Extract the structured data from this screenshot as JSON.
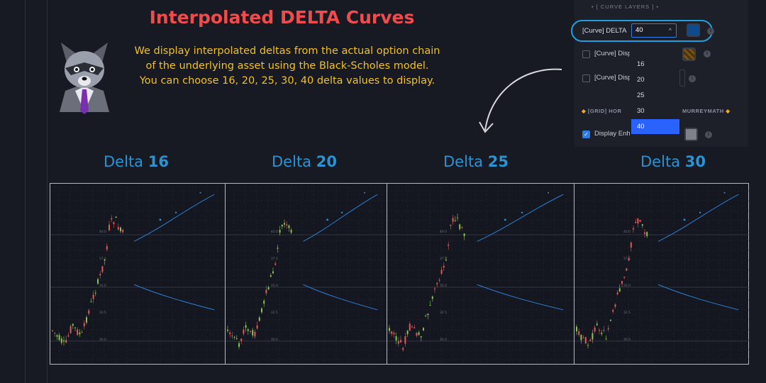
{
  "header": {
    "title": "Interpolated DELTA Curves",
    "description_lines": [
      "We  display interpolated deltas from the actual option chain",
      "of the underlying asset using the Black-Scholes model.",
      "You can choose 16, 20, 25, 30, 40 delta values to display."
    ]
  },
  "settings_panel": {
    "section_header": "• [ CURVE LAYERS ] •",
    "curve_row": {
      "label": "[Curve] DELTA",
      "select_value": "40",
      "caret": "^",
      "swatch_color": "#0d4a8f"
    },
    "rows": [
      {
        "label": "[Curve] Disp",
        "checked": false
      },
      {
        "label": "[Curve] Disp",
        "checked": false
      }
    ],
    "grid_header": "[GRID] HOR",
    "grid_header_right": "MURREYMATH",
    "display_row": {
      "label": "Display Enh",
      "checked": true
    },
    "dropdown": {
      "options": [
        "16",
        "20",
        "25",
        "30",
        "40"
      ],
      "selected": "40"
    }
  },
  "panels": [
    {
      "prefix": "Delta",
      "value": "16"
    },
    {
      "prefix": "Delta",
      "value": "20"
    },
    {
      "prefix": "Delta",
      "value": "25"
    },
    {
      "prefix": "Delta",
      "value": "30"
    }
  ],
  "chart_price_labels": [
    "40.0",
    "37.5",
    "35.0",
    "32.5",
    "30.0"
  ],
  "colors": {
    "title": "#f24b4b",
    "description": "#f2c11e",
    "panel_title": "#2a93d4",
    "curve": "#2a7fd4",
    "candle_up": "#8cc152",
    "candle_down": "#e05a5a",
    "accent": "#1f9fe0"
  }
}
